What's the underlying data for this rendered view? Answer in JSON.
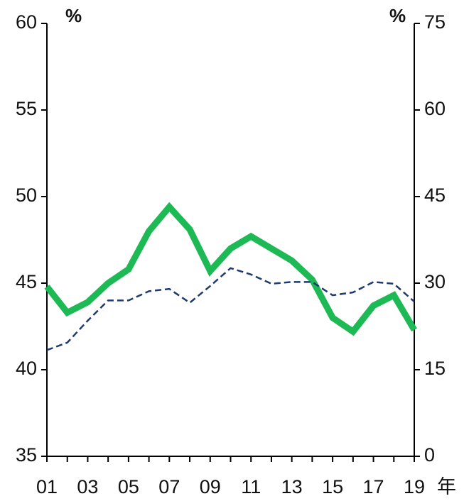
{
  "chart_data": {
    "type": "line",
    "categories": [
      "01",
      null,
      "03",
      null,
      "05",
      null,
      "07",
      null,
      "09",
      null,
      "11",
      null,
      "13",
      null,
      "15",
      null,
      "17",
      null,
      "19"
    ],
    "x_unit": "年",
    "y_unit": "%",
    "y2_unit": "%",
    "ylim": [
      35,
      60
    ],
    "yticks": [
      35,
      40,
      45,
      50,
      55,
      60
    ],
    "y2lim": [
      0,
      75
    ],
    "y2ticks": [
      0,
      15,
      30,
      45,
      60,
      75
    ],
    "series": [
      {
        "color": "#1db954",
        "style": "solid",
        "axis": "y",
        "values": [
          44.8,
          43.3,
          43.9,
          45.0,
          45.8,
          48.0,
          49.4,
          48.1,
          45.7,
          47.0,
          47.7,
          47.0,
          46.3,
          45.2,
          43.0,
          42.2,
          43.7,
          44.3,
          42.3
        ]
      },
      {
        "color": "#1f3a6e",
        "style": "dashed",
        "axis": "y2",
        "values": [
          18.4,
          19.7,
          23.5,
          27.0,
          27.0,
          28.6,
          29.0,
          26.6,
          29.5,
          32.6,
          31.5,
          29.9,
          30.2,
          30.2,
          27.9,
          28.4,
          30.2,
          29.9,
          26.8
        ]
      }
    ]
  }
}
